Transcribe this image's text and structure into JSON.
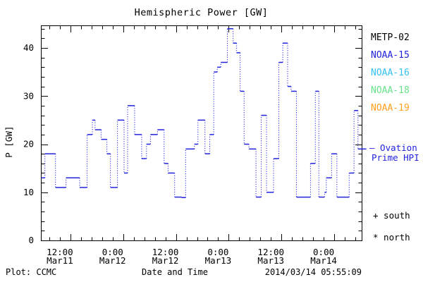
{
  "title": "Hemispheric Power [GW]",
  "y_axis_label": "P [GW]",
  "legend": {
    "satellites": [
      {
        "label": "METP-02",
        "color": "#000000"
      },
      {
        "label": "NOAA-15",
        "color": "#2222dd"
      },
      {
        "label": "NOAA-16",
        "color": "#35c2f2"
      },
      {
        "label": "NOAA-18",
        "color": "#66e388"
      },
      {
        "label": "NOAA-19",
        "color": "#ffa01e"
      }
    ],
    "line_key_line1": "— Ovation",
    "line_key_line2": "Prime HPI",
    "south_marker": "+ south",
    "north_marker": "* north"
  },
  "footer": {
    "plot_credit": "Plot: CCMC",
    "x_axis_label": "Date and Time",
    "timestamp": "2014/03/14 05:55:09"
  },
  "chart_data": {
    "type": "line",
    "subtype": "stairstep with dotted risers",
    "title": "Hemispheric Power [GW]",
    "ylabel": "P [GW]",
    "xlabel": "Date and Time",
    "ylim": [
      0,
      44.7
    ],
    "y_major_ticks": [
      0,
      10,
      20,
      30,
      40
    ],
    "y_minor_step": 2,
    "x_hours_base": "2014 Mar11 00:00",
    "x_hours_range": [
      5.3,
      78.2
    ],
    "x_minor_step_hours": 2.4,
    "x_major_ticks": [
      {
        "hours": 12,
        "time": "12:00",
        "date": "Mar11"
      },
      {
        "hours": 24,
        "time": "0:00",
        "date": "Mar12"
      },
      {
        "hours": 36,
        "time": "12:00",
        "date": "Mar12"
      },
      {
        "hours": 48,
        "time": "0:00",
        "date": "Mar13"
      },
      {
        "hours": 60,
        "time": "12:00",
        "date": "Mar13"
      },
      {
        "hours": 72,
        "time": "0:00",
        "date": "Mar14"
      }
    ],
    "grid": false,
    "legend_position": "right",
    "series": [
      {
        "name": "Ovation Prime HPI",
        "color": "#2222dd",
        "unit": "GW",
        "end_hours": 79.3,
        "steps_hours_gw": [
          [
            5.3,
            13
          ],
          [
            6.2,
            18
          ],
          [
            8.6,
            11
          ],
          [
            11.0,
            13
          ],
          [
            14.1,
            11
          ],
          [
            15.8,
            22
          ],
          [
            17.0,
            25
          ],
          [
            17.6,
            23
          ],
          [
            19.0,
            21
          ],
          [
            20.3,
            18
          ],
          [
            21.1,
            11
          ],
          [
            22.7,
            25
          ],
          [
            24.2,
            14
          ],
          [
            25.0,
            28
          ],
          [
            26.6,
            22
          ],
          [
            28.2,
            17
          ],
          [
            29.3,
            20
          ],
          [
            30.2,
            22
          ],
          [
            31.8,
            23
          ],
          [
            33.3,
            16
          ],
          [
            34.2,
            14
          ],
          [
            35.7,
            9
          ],
          [
            37.3,
            8.9
          ],
          [
            38.2,
            19
          ],
          [
            40.2,
            20
          ],
          [
            41.0,
            25
          ],
          [
            42.6,
            18
          ],
          [
            43.7,
            22
          ],
          [
            44.6,
            35
          ],
          [
            45.4,
            36
          ],
          [
            46.2,
            37
          ],
          [
            47.7,
            44
          ],
          [
            49.0,
            41
          ],
          [
            49.8,
            39
          ],
          [
            50.6,
            31
          ],
          [
            51.5,
            20
          ],
          [
            52.6,
            19
          ],
          [
            54.2,
            9
          ],
          [
            55.4,
            26
          ],
          [
            56.6,
            10
          ],
          [
            58.2,
            17
          ],
          [
            59.4,
            37
          ],
          [
            60.3,
            41
          ],
          [
            61.4,
            32
          ],
          [
            62.2,
            31
          ],
          [
            63.4,
            9
          ],
          [
            66.6,
            16
          ],
          [
            67.7,
            31
          ],
          [
            68.5,
            9
          ],
          [
            69.8,
            10
          ],
          [
            70.2,
            13
          ],
          [
            71.4,
            18
          ],
          [
            72.6,
            9
          ],
          [
            75.4,
            14
          ],
          [
            76.5,
            27
          ],
          [
            77.4,
            19
          ]
        ]
      }
    ]
  }
}
